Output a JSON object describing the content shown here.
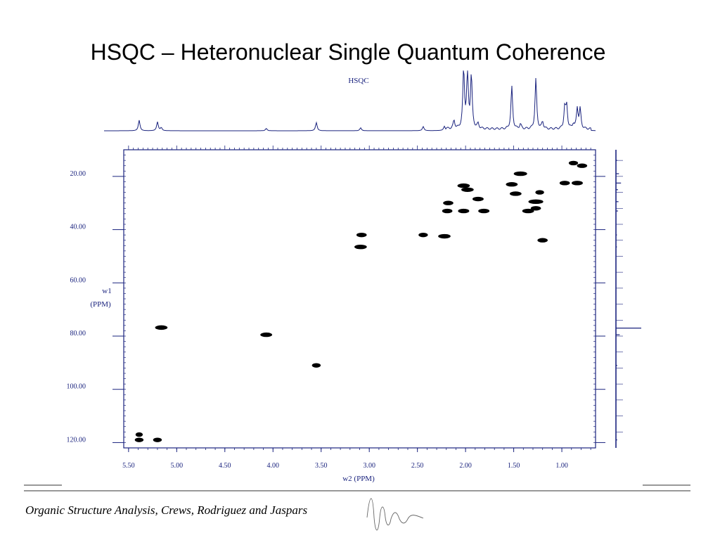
{
  "slide_title": "HSQC – Heteronuclear Single Quantum Coherence",
  "footer_text": "Organic Structure Analysis, Crews, Rodriguez and Jaspars",
  "colors": {
    "axis": "#1a237e",
    "peaks": "#000000",
    "text": "#000000"
  },
  "chart_data": {
    "type": "scatter",
    "title": "HSQC",
    "xlabel": "w2 (PPM)",
    "ylabel_lines": [
      "w1",
      "(PPM)"
    ],
    "xlim": [
      5.55,
      0.65
    ],
    "ylim": [
      10,
      122
    ],
    "x_ticks": [
      5.5,
      5.0,
      4.5,
      4.0,
      3.5,
      3.0,
      2.5,
      2.0,
      1.5,
      1.0
    ],
    "x_tick_labels": [
      "5.50",
      "5.00",
      "4.50",
      "4.00",
      "3.50",
      "3.00",
      "2.50",
      "2.00",
      "1.50",
      "1.00"
    ],
    "y_ticks": [
      20,
      40,
      60,
      80,
      100,
      120
    ],
    "y_tick_labels": [
      "20.00",
      "40.00",
      "60.00",
      "80.00",
      "100.00",
      "120.00"
    ],
    "cross_peaks": [
      {
        "h": 5.39,
        "c": 119.0,
        "w": 1.0
      },
      {
        "h": 5.39,
        "c": 117.0,
        "w": 0.5
      },
      {
        "h": 5.2,
        "c": 119.0,
        "w": 1.0
      },
      {
        "h": 5.16,
        "c": 76.8,
        "w": 2.2
      },
      {
        "h": 4.07,
        "c": 79.5,
        "w": 2.0
      },
      {
        "h": 3.55,
        "c": 91.0,
        "w": 1.0
      },
      {
        "h": 3.09,
        "c": 46.5,
        "w": 2.2
      },
      {
        "h": 3.08,
        "c": 42.0,
        "w": 1.5
      },
      {
        "h": 2.44,
        "c": 42.0,
        "w": 1.2
      },
      {
        "h": 2.22,
        "c": 42.5,
        "w": 2.2
      },
      {
        "h": 2.19,
        "c": 33.0,
        "w": 1.5
      },
      {
        "h": 2.18,
        "c": 30.0,
        "w": 1.5
      },
      {
        "h": 2.02,
        "c": 23.5,
        "w": 2.2
      },
      {
        "h": 1.98,
        "c": 25.0,
        "w": 2.2
      },
      {
        "h": 2.02,
        "c": 33.0,
        "w": 1.8
      },
      {
        "h": 1.87,
        "c": 28.5,
        "w": 1.8
      },
      {
        "h": 1.81,
        "c": 33.0,
        "w": 1.8
      },
      {
        "h": 1.52,
        "c": 23.0,
        "w": 2.0
      },
      {
        "h": 1.48,
        "c": 26.5,
        "w": 2.0
      },
      {
        "h": 1.43,
        "c": 19.0,
        "w": 2.5
      },
      {
        "h": 1.35,
        "c": 33.0,
        "w": 2.0
      },
      {
        "h": 1.27,
        "c": 29.5,
        "w": 3.0
      },
      {
        "h": 1.27,
        "c": 32.0,
        "w": 1.5
      },
      {
        "h": 1.23,
        "c": 26.0,
        "w": 1.0
      },
      {
        "h": 1.2,
        "c": 44.0,
        "w": 1.5
      },
      {
        "h": 0.97,
        "c": 22.5,
        "w": 1.5
      },
      {
        "h": 0.88,
        "c": 15.0,
        "w": 1.2
      },
      {
        "h": 0.84,
        "c": 22.5,
        "w": 1.8
      },
      {
        "h": 0.79,
        "c": 16.0,
        "w": 1.5
      }
    ],
    "proton_projection_peaks": [
      {
        "h": 5.39,
        "i": 0.18
      },
      {
        "h": 5.2,
        "i": 0.15
      },
      {
        "h": 5.16,
        "i": 0.05
      },
      {
        "h": 4.07,
        "i": 0.04
      },
      {
        "h": 3.55,
        "i": 0.14
      },
      {
        "h": 3.09,
        "i": 0.05
      },
      {
        "h": 2.44,
        "i": 0.07
      },
      {
        "h": 2.22,
        "i": 0.07
      },
      {
        "h": 2.12,
        "i": 0.14
      },
      {
        "h": 2.02,
        "i": 1.0
      },
      {
        "h": 1.98,
        "i": 0.95
      },
      {
        "h": 1.94,
        "i": 0.9
      },
      {
        "h": 1.87,
        "i": 0.08
      },
      {
        "h": 1.52,
        "i": 0.72
      },
      {
        "h": 1.43,
        "i": 0.08
      },
      {
        "h": 1.27,
        "i": 0.85
      },
      {
        "h": 1.2,
        "i": 0.12
      },
      {
        "h": 0.97,
        "i": 0.36
      },
      {
        "h": 0.95,
        "i": 0.38
      },
      {
        "h": 0.88,
        "i": 0.08
      },
      {
        "h": 0.84,
        "i": 0.35
      },
      {
        "h": 0.81,
        "i": 0.33
      }
    ],
    "carbon_projection_peaks": [
      {
        "c": 14.0,
        "i": 0.05
      },
      {
        "c": 19.0,
        "i": 0.12
      },
      {
        "c": 22.5,
        "i": 0.2
      },
      {
        "c": 25.0,
        "i": 0.08
      },
      {
        "c": 29.5,
        "i": 0.1
      },
      {
        "c": 33.0,
        "i": 0.08
      },
      {
        "c": 42.0,
        "i": 0.04
      },
      {
        "c": 46.5,
        "i": 0.04
      },
      {
        "c": 77.0,
        "i": 1.0
      },
      {
        "c": 79.5,
        "i": 0.15
      },
      {
        "c": 91.0,
        "i": 0.05
      },
      {
        "c": 119.0,
        "i": 0.05
      }
    ]
  }
}
